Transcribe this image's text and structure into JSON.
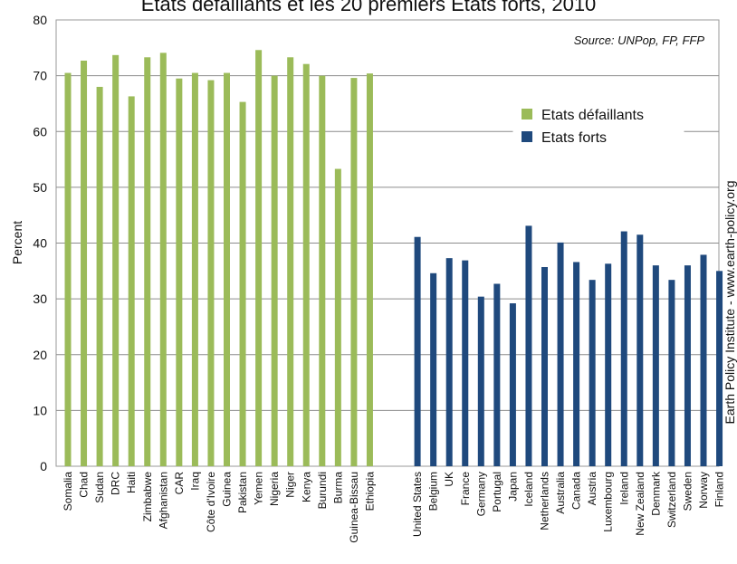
{
  "chart_data": {
    "type": "bar",
    "title": "Etats défaillants et les 20 premiers Etats forts, 2010",
    "ylabel": "Percent",
    "ylim": [
      0,
      80
    ],
    "yticks": [
      0,
      10,
      20,
      30,
      40,
      50,
      60,
      70,
      80
    ],
    "grid": true,
    "legend_position": "top-right",
    "source_note": "Source: UNPop, FP, FFP",
    "credit": "Earth Policy Institute - www.earth-policy.org",
    "series": [
      {
        "name": "Etats défaillants",
        "color": "#9bbb59",
        "categories": [
          "Somalia",
          "Chad",
          "Sudan",
          "DRC",
          "Haiti",
          "Zimbabwe",
          "Afghanistan",
          "CAR",
          "Iraq",
          "Côte d'Ivoire",
          "Guinea",
          "Pakistan",
          "Yemen",
          "Nigeria",
          "Niger",
          "Kenya",
          "Burundi",
          "Burma",
          "Guinea-Bissau",
          "Ethiopia"
        ],
        "values": [
          70.5,
          72.7,
          68.0,
          73.7,
          66.3,
          73.3,
          74.1,
          69.5,
          70.5,
          69.2,
          70.5,
          65.3,
          74.6,
          70.0,
          73.3,
          72.1,
          70.0,
          53.3,
          69.6,
          70.4
        ]
      },
      {
        "name": "Etats forts",
        "color": "#1f497d",
        "categories": [
          "United States",
          "Belgium",
          "UK",
          "France",
          "Germany",
          "Portugal",
          "Japan",
          "Iceland",
          "Netherlands",
          "Australia",
          "Canada",
          "Austria",
          "Luxembourg",
          "Ireland",
          "New Zealand",
          "Denmark",
          "Switzerland",
          "Sweden",
          "Norway",
          "Finland"
        ],
        "values": [
          41.1,
          34.6,
          37.3,
          36.9,
          30.4,
          32.7,
          29.2,
          43.1,
          35.7,
          40.1,
          36.6,
          33.4,
          36.3,
          42.1,
          41.5,
          36.0,
          33.4,
          36.0,
          37.9,
          35.0
        ]
      }
    ]
  }
}
